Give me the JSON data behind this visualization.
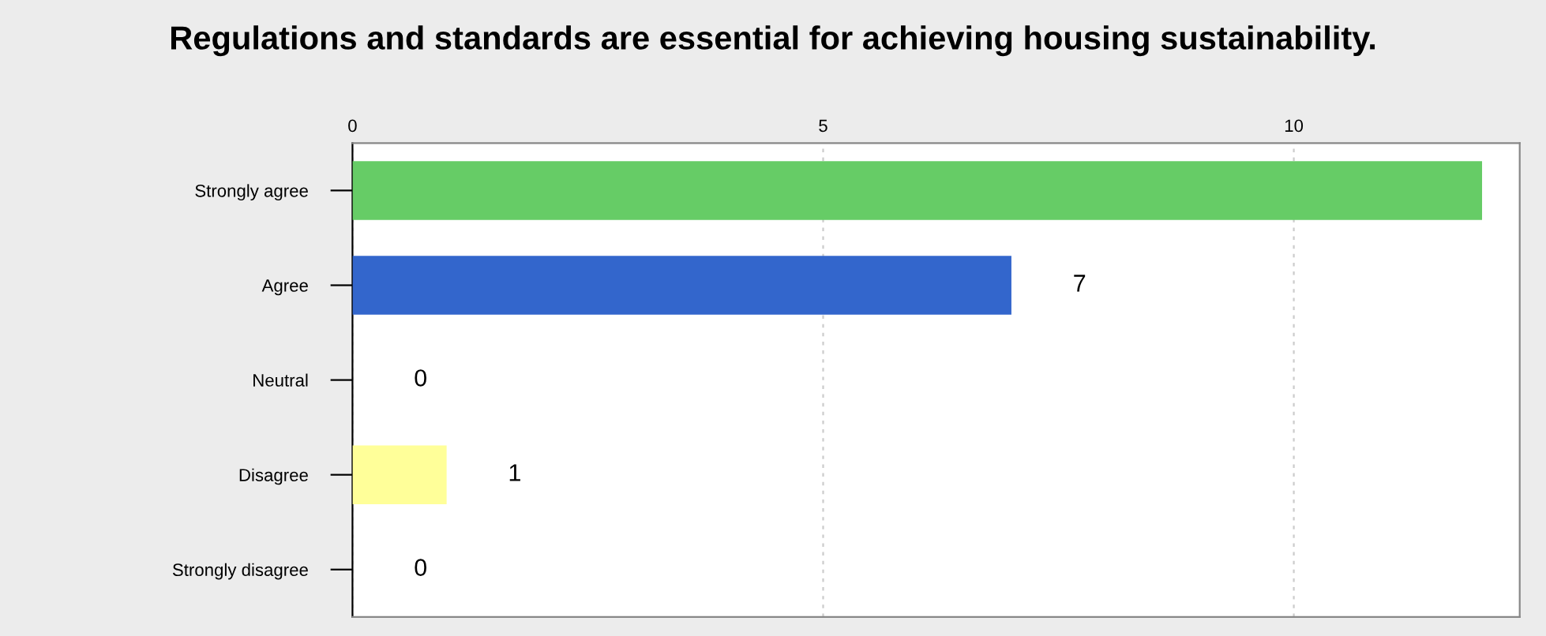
{
  "chart_data": {
    "type": "bar",
    "orientation": "horizontal",
    "title": "Regulations and standards are essential for achieving housing sustainability.",
    "categories": [
      "Strongly agree",
      "Agree",
      "Neutral",
      "Disagree",
      "Strongly disagree"
    ],
    "values": [
      12,
      7,
      0,
      1,
      0
    ],
    "colors": [
      "#66cc66",
      "#3366cc",
      "#999999",
      "#ffff99",
      "#999999"
    ],
    "value_labels": [
      null,
      "7",
      "0",
      "1",
      "0"
    ],
    "xlim": [
      0,
      12.4
    ],
    "xticks": [
      0,
      5,
      10
    ],
    "grid": "x",
    "legend": false
  }
}
